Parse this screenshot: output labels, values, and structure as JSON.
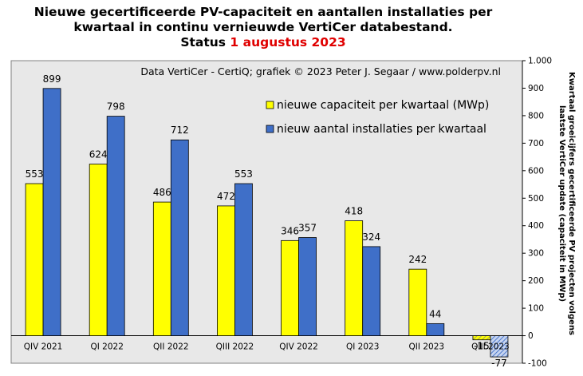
{
  "title": {
    "line1": "Nieuwe gecertificeerde PV-capaciteit  en aantallen installaties  per",
    "line2": "kwartaal in continu vernieuwde VertiCer databestand.",
    "status_prefix": "Status",
    "status_date": "1 augustus 2023"
  },
  "colors": {
    "capacity": "#ffff00",
    "installations": "#3f6fc8",
    "plot_background": "#e8e8e8",
    "status_date": "#e00000"
  },
  "chart_data": {
    "type": "bar",
    "title": "Nieuwe gecertificeerde PV-capaciteit en aantallen installaties per kwartaal in continu vernieuwde VertiCer databestand. Status 1 augustus 2023",
    "source_note": "Data VertiCer - CertiQ; grafiek © 2023 Peter J. Segaar / www.polderpv.nl",
    "categories": [
      "QIV 2021",
      "QI 2022",
      "QII 2022",
      "QIII 2022",
      "QIV 2022",
      "QI 2023",
      "QII 2023",
      "QIII 2023"
    ],
    "series": [
      {
        "name": "nieuwe capaciteit per kwartaal (MWp)",
        "values": [
          553,
          624,
          486,
          472,
          346,
          418,
          242,
          -15
        ],
        "labels": [
          "553",
          "624",
          "486",
          "472",
          "346",
          "418",
          "242",
          "-15"
        ]
      },
      {
        "name": "nieuw aantal installaties per kwartaal",
        "values": [
          899,
          798,
          712,
          553,
          357,
          324,
          44,
          -77
        ],
        "labels": [
          "899",
          "798",
          "712",
          "553",
          "357",
          "324",
          "44",
          "-77"
        ]
      }
    ],
    "ylabel": "Kwartaal groeicijfers gecertificeerde PV projecten volgens laatste VertiCer update (capaciteit in MWp)",
    "ylim": [
      -100,
      1000
    ],
    "yticks": [
      -100,
      0,
      100,
      200,
      300,
      400,
      500,
      600,
      700,
      800,
      900,
      1000
    ],
    "ytick_labels": [
      "-100",
      "0",
      "100",
      "200",
      "300",
      "400",
      "500",
      "600",
      "700",
      "800",
      "900",
      "1.000"
    ],
    "y_axis_side": "right",
    "grid": false,
    "legend_position": "top-right",
    "partial_last_quarter": true
  }
}
